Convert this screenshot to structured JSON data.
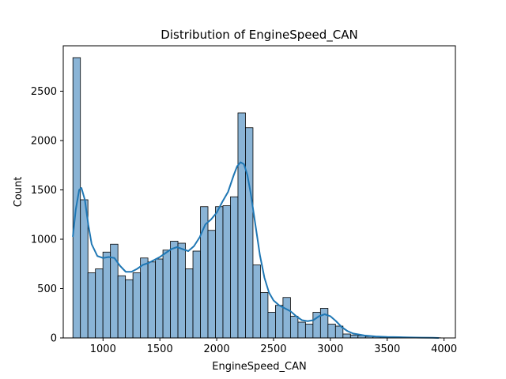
{
  "chart_data": {
    "type": "bar",
    "subtype": "histogram-with-kde",
    "title": "Distribution of EngineSpeed_CAN",
    "xlabel": "EngineSpeed_CAN",
    "ylabel": "Count",
    "xlim": [
      650,
      4100
    ],
    "ylim": [
      0,
      2960
    ],
    "xticks": [
      1000,
      1500,
      2000,
      2500,
      3000,
      3500,
      4000
    ],
    "yticks": [
      0,
      500,
      1000,
      1500,
      2000,
      2500
    ],
    "grid": false,
    "bar_color": "#8ab4d6",
    "bar_edge_color": "#000000",
    "line_color": "#1f77b4",
    "bins": {
      "start": 735,
      "width": 66,
      "counts": [
        2840,
        1400,
        660,
        700,
        870,
        950,
        630,
        590,
        660,
        810,
        770,
        800,
        890,
        980,
        960,
        700,
        880,
        1330,
        1090,
        1330,
        1340,
        1430,
        2280,
        2130,
        740,
        460,
        260,
        330,
        410,
        220,
        160,
        140,
        260,
        300,
        140,
        120,
        40,
        30,
        25,
        15,
        12,
        10,
        8,
        6,
        5,
        4,
        3,
        3,
        2
      ]
    },
    "kde": {
      "x": [
        735,
        760,
        790,
        810,
        840,
        870,
        900,
        950,
        1000,
        1050,
        1100,
        1150,
        1200,
        1250,
        1300,
        1350,
        1400,
        1450,
        1500,
        1550,
        1600,
        1650,
        1700,
        1750,
        1800,
        1850,
        1900,
        1950,
        2000,
        2050,
        2100,
        2150,
        2180,
        2210,
        2240,
        2270,
        2300,
        2340,
        2380,
        2420,
        2460,
        2500,
        2550,
        2600,
        2650,
        2700,
        2750,
        2800,
        2850,
        2900,
        2950,
        3000,
        3050,
        3100,
        3150,
        3200,
        3300,
        3400,
        3500,
        3600,
        3700,
        3800,
        3900,
        3950
      ],
      "y": [
        1030,
        1300,
        1500,
        1520,
        1400,
        1150,
        950,
        830,
        810,
        820,
        810,
        730,
        670,
        670,
        700,
        740,
        760,
        790,
        820,
        860,
        900,
        920,
        900,
        880,
        930,
        1020,
        1150,
        1200,
        1270,
        1380,
        1480,
        1650,
        1740,
        1780,
        1760,
        1650,
        1460,
        1150,
        840,
        610,
        460,
        380,
        330,
        300,
        270,
        220,
        180,
        170,
        180,
        220,
        240,
        220,
        170,
        110,
        70,
        45,
        25,
        15,
        10,
        8,
        5,
        3,
        2,
        0
      ]
    }
  }
}
